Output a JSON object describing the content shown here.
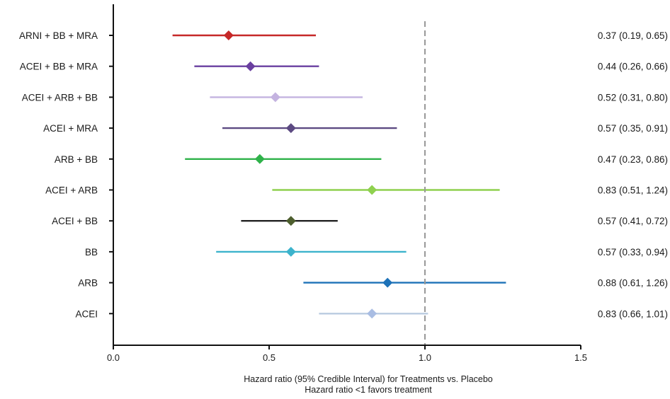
{
  "chart_data": {
    "type": "forest",
    "xlabel": "Hazard ratio (95% Credible Interval) for Treatments vs. Placebo",
    "xlabel_sub": "Hazard ratio <1 favors treatment",
    "xlim": [
      0.0,
      1.5
    ],
    "xticks": [
      0.0,
      0.5,
      1.0,
      1.5
    ],
    "xtick_labels": [
      "0.0",
      "0.5",
      "1.0",
      "1.5"
    ],
    "reference_line": 1.0,
    "reference_line_style": "dashed",
    "grid": false,
    "rows": [
      {
        "label": "ARNI + BB + MRA",
        "hr": 0.37,
        "lo": 0.19,
        "hi": 0.65,
        "ci_text": "0.37 (0.19, 0.65)",
        "color": "#c62828"
      },
      {
        "label": "ACEI + BB + MRA",
        "hr": 0.44,
        "lo": 0.26,
        "hi": 0.66,
        "ci_text": "0.44 (0.26, 0.66)",
        "color": "#6a3fa0"
      },
      {
        "label": "ACEI + ARB + BB",
        "hr": 0.52,
        "lo": 0.31,
        "hi": 0.8,
        "ci_text": "0.52 (0.31, 0.80)",
        "color": "#c4b3e0"
      },
      {
        "label": "ACEI + MRA",
        "hr": 0.57,
        "lo": 0.35,
        "hi": 0.91,
        "ci_text": "0.57 (0.35, 0.91)",
        "color": "#5c4a82"
      },
      {
        "label": "ARB + BB",
        "hr": 0.47,
        "lo": 0.23,
        "hi": 0.86,
        "ci_text": "0.47 (0.23, 0.86)",
        "color": "#2fb24a"
      },
      {
        "label": "ACEI + ARB",
        "hr": 0.83,
        "lo": 0.51,
        "hi": 1.24,
        "ci_text": "0.83 (0.51, 1.24)",
        "color": "#8fd14f"
      },
      {
        "label": "ACEI + BB",
        "hr": 0.57,
        "lo": 0.41,
        "hi": 0.72,
        "ci_text": "0.57 (0.41, 0.72)",
        "color": "#222222",
        "marker_color": "#4d5e2e"
      },
      {
        "label": "BB",
        "hr": 0.57,
        "lo": 0.33,
        "hi": 0.94,
        "ci_text": "0.57 (0.33, 0.94)",
        "color": "#3cb3cc"
      },
      {
        "label": "ARB",
        "hr": 0.88,
        "lo": 0.61,
        "hi": 1.26,
        "ci_text": "0.88 (0.61, 1.26)",
        "color": "#1d72b8"
      },
      {
        "label": "ACEI",
        "hr": 0.83,
        "lo": 0.66,
        "hi": 1.01,
        "ci_text": "0.83 (0.66, 1.01)",
        "color": "#b9cbe0",
        "marker_color": "#a9bde3"
      }
    ]
  }
}
